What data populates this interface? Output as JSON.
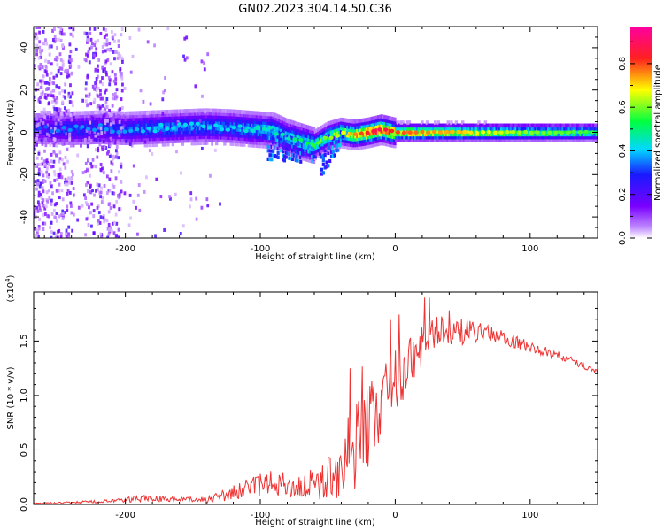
{
  "title": "GN02.2023.304.14.50.C36",
  "chart_data": [
    {
      "type": "heatmap",
      "xlabel": "Height of straight line (km)",
      "ylabel": "Frequency (Hz)",
      "xlim": [
        -268,
        150
      ],
      "ylim": [
        -50,
        50
      ],
      "x_ticks": [
        "-200",
        "-100",
        "0",
        "100"
      ],
      "y_ticks": [
        "-40",
        "-20",
        "0",
        "20",
        "40"
      ],
      "ridge": {
        "x": [
          -265,
          -240,
          -220,
          -200,
          -180,
          -160,
          -140,
          -120,
          -100,
          -90,
          -80,
          -70,
          -60,
          -50,
          -40,
          -30,
          -20,
          -10,
          0,
          50,
          100,
          150
        ],
        "center_hz": [
          2,
          1.5,
          2,
          1.5,
          2,
          2.5,
          3,
          2.5,
          1.5,
          1,
          -2,
          -4,
          -6,
          -2,
          0,
          -1,
          0,
          1.5,
          0,
          0,
          0,
          0
        ],
        "amplitude": [
          0.25,
          0.3,
          0.3,
          0.3,
          0.35,
          0.35,
          0.35,
          0.35,
          0.4,
          0.4,
          0.4,
          0.45,
          0.5,
          0.55,
          0.6,
          0.7,
          0.8,
          0.85,
          0.75,
          0.65,
          0.55,
          0.5
        ]
      },
      "colorbar": {
        "label": "Normalized spectral amplitude",
        "range": [
          0,
          0.97
        ],
        "ticks": [
          "0.0",
          "0.2",
          "0.4",
          "0.6",
          "0.8"
        ],
        "colors": [
          "#ffffff",
          "#c08bff",
          "#7a00ff",
          "#1a1aff",
          "#00d8ff",
          "#00ff40",
          "#ffff00",
          "#ff2020",
          "#ff00a0"
        ]
      }
    },
    {
      "type": "line",
      "xlabel": "Height of straight line (km)",
      "ylabel": "SNR (10 * v/v)",
      "y_multiplier": "(x10",
      "y_multiplier_exp": "4",
      "y_multiplier_close": ")",
      "xlim": [
        -268,
        150
      ],
      "ylim": [
        0,
        1.95
      ],
      "x_ticks": [
        "-200",
        "-100",
        "0",
        "100"
      ],
      "y_ticks": [
        "0.0",
        "0.5",
        "1.0",
        "1.5"
      ],
      "series": [
        {
          "color": "#ee3333",
          "x": [
            -268,
            -240,
            -220,
            -200,
            -190,
            -180,
            -160,
            -140,
            -130,
            -120,
            -110,
            -100,
            -90,
            -80,
            -70,
            -60,
            -50,
            -45,
            -40,
            -35,
            -30,
            -25,
            -20,
            -15,
            -10,
            -5,
            0,
            10,
            20,
            28,
            40,
            60,
            80,
            100,
            120,
            140,
            150
          ],
          "y": [
            0.01,
            0.02,
            0.03,
            0.04,
            0.07,
            0.06,
            0.05,
            0.05,
            0.08,
            0.12,
            0.16,
            0.2,
            0.22,
            0.2,
            0.18,
            0.22,
            0.28,
            0.35,
            0.42,
            0.55,
            0.62,
            0.7,
            0.8,
            0.92,
            1.0,
            1.1,
            1.2,
            1.35,
            1.5,
            1.6,
            1.62,
            1.6,
            1.55,
            1.45,
            1.38,
            1.28,
            1.22
          ],
          "noise": [
            0.005,
            0.01,
            0.015,
            0.02,
            0.04,
            0.03,
            0.02,
            0.03,
            0.05,
            0.07,
            0.09,
            0.1,
            0.12,
            0.12,
            0.12,
            0.15,
            0.2,
            0.25,
            0.3,
            0.35,
            0.4,
            0.4,
            0.4,
            0.38,
            0.35,
            0.32,
            0.3,
            0.25,
            0.2,
            0.16,
            0.14,
            0.1,
            0.07,
            0.05,
            0.04,
            0.03,
            0.02
          ]
        }
      ]
    }
  ]
}
